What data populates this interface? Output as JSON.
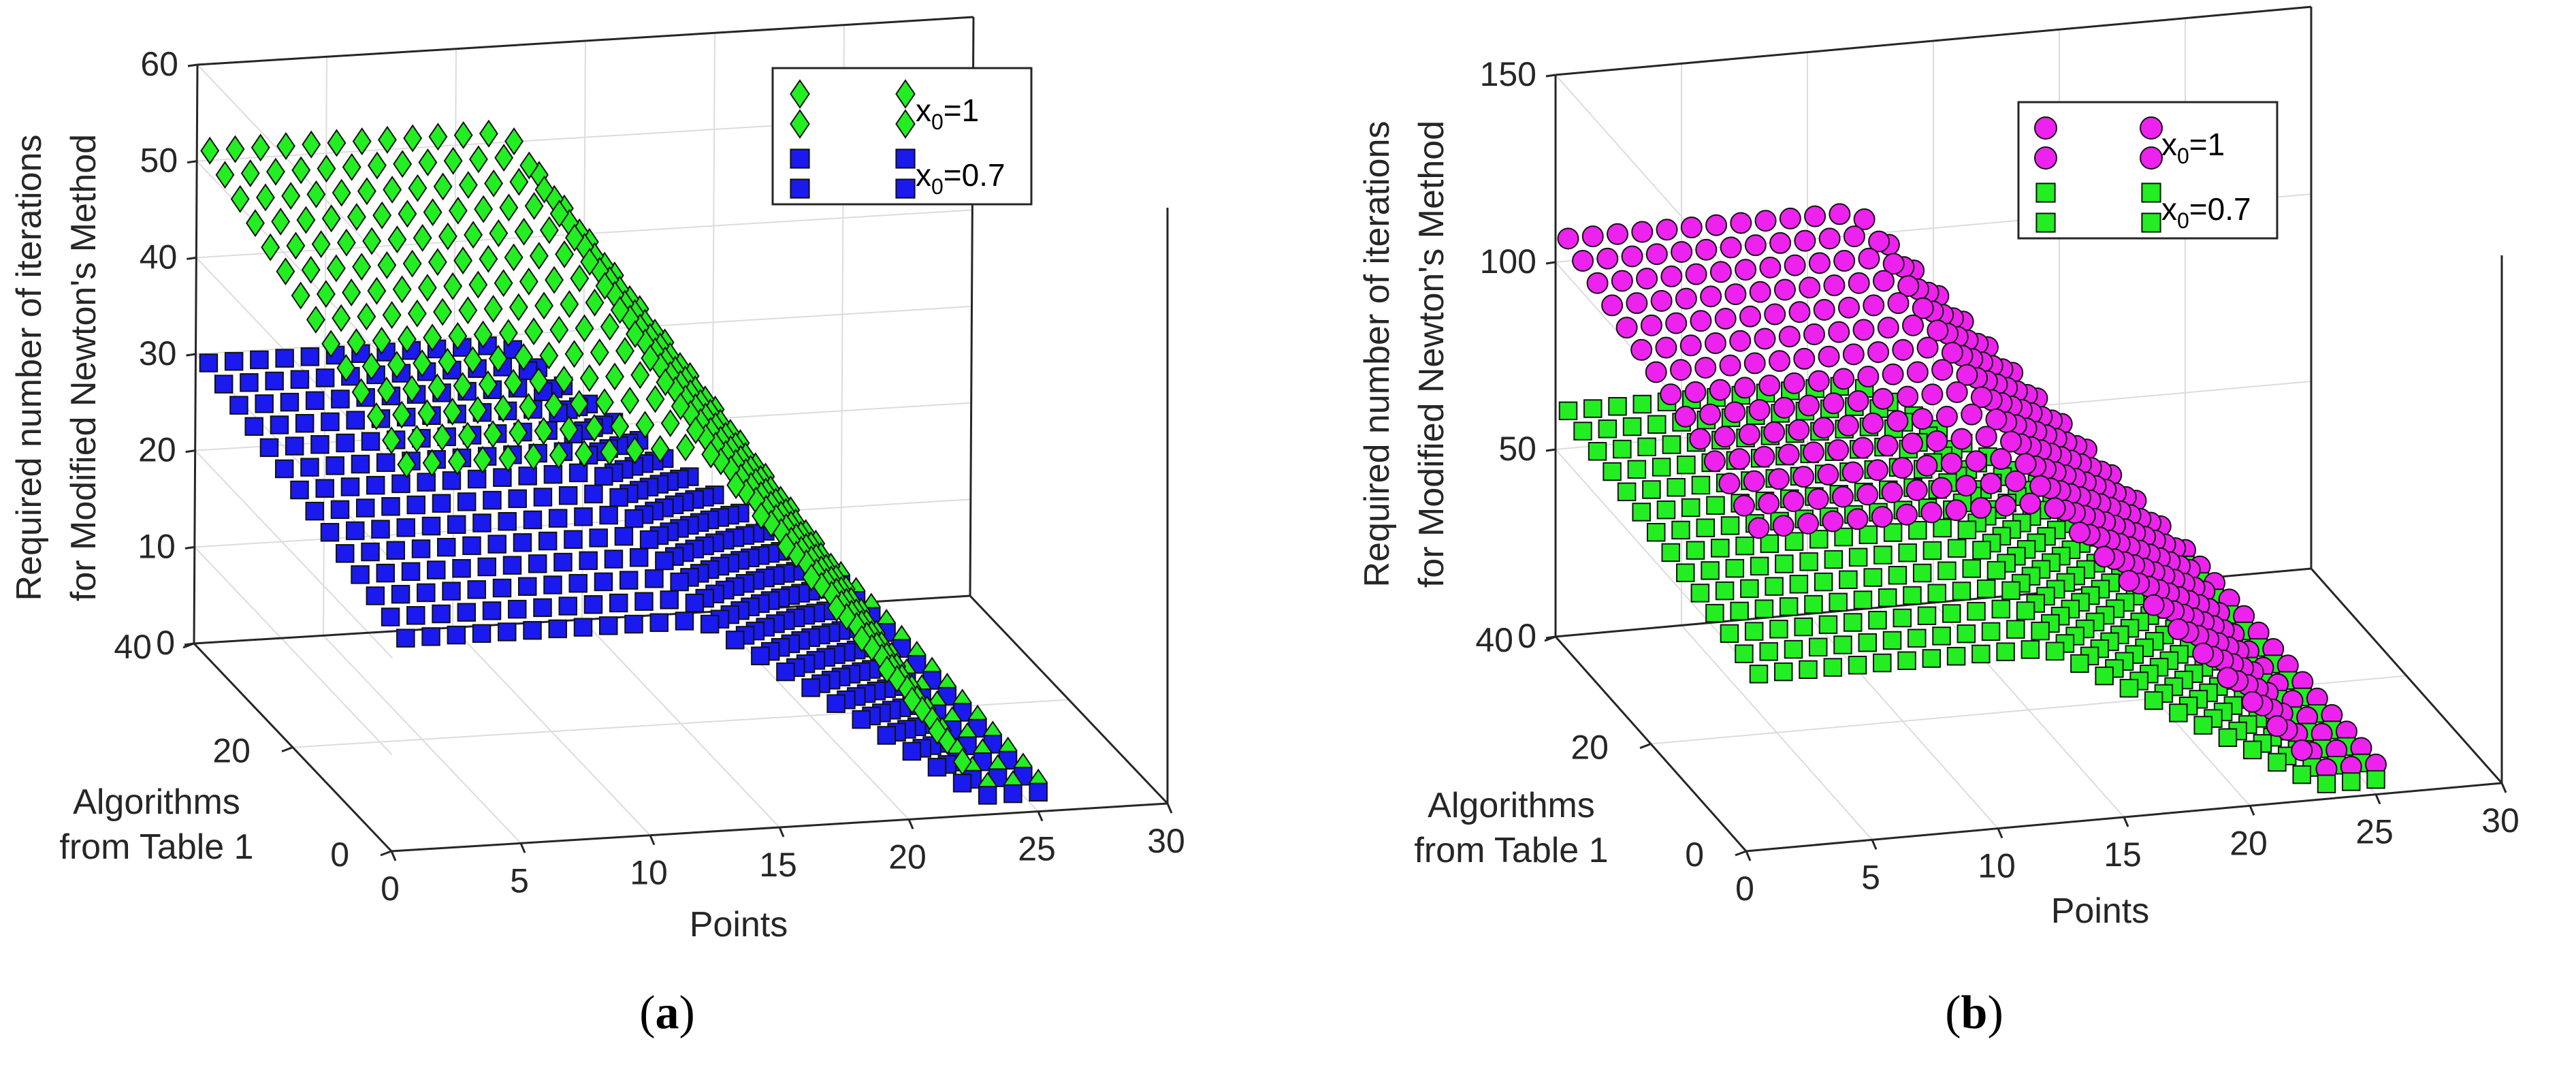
{
  "chart_data": [
    {
      "type": "scatter3d",
      "panel": "(a)",
      "panel_letter": "a",
      "zlabel_line1": "Required number of iterations",
      "zlabel_line2": "for Modified Newton's Method",
      "xlabel": "Points",
      "ylabel_line1": "Algorithms",
      "ylabel_line2": "from Table 1",
      "xlim": [
        0,
        30
      ],
      "ylim": [
        0,
        40
      ],
      "zlim": [
        0,
        60
      ],
      "xticks": [
        "0",
        "5",
        "10",
        "15",
        "20",
        "25",
        "30"
      ],
      "yticks": [
        "0",
        "20",
        "40"
      ],
      "zticks": [
        "0",
        "10",
        "20",
        "30",
        "40",
        "50",
        "60"
      ],
      "legend_location": "top-right",
      "series": [
        {
          "name": "x0=1",
          "label_main": "x",
          "label_sub": "0",
          "label_rest": "=1",
          "marker": "diamond",
          "color": "#22ee22",
          "surface": {
            "z_at_x0_y40": 51,
            "z_at_x0_y0": 40,
            "z_at_x12_y40": 51,
            "z_at_x12_y0": 40,
            "z_at_x25": 3
          }
        },
        {
          "name": "x0=0.7",
          "label_main": "x",
          "label_sub": "0",
          "label_rest": "=0.7",
          "marker": "square",
          "color": "#1a1aee",
          "surface": {
            "z_at_x0_y40": 29,
            "z_at_x0_y0": 22,
            "z_at_x12_y40": 29,
            "z_at_x12_y0": 22,
            "z_at_x25": 2
          }
        }
      ]
    },
    {
      "type": "scatter3d",
      "panel": "(b)",
      "panel_letter": "b",
      "zlabel_line1": "Required number of iterations",
      "zlabel_line2": "for Modified Newton's Method",
      "xlabel": "Points",
      "ylabel_line1": "Algorithms",
      "ylabel_line2": "from Table 1",
      "xlim": [
        0,
        30
      ],
      "ylim": [
        0,
        40
      ],
      "zlim": [
        0,
        150
      ],
      "xticks": [
        "0",
        "5",
        "10",
        "15",
        "20",
        "25",
        "30"
      ],
      "yticks": [
        "0",
        "20",
        "40"
      ],
      "zticks": [
        "0",
        "50",
        "100",
        "150"
      ],
      "legend_location": "top-right",
      "series": [
        {
          "name": "x0=1",
          "label_main": "x",
          "label_sub": "0",
          "label_rest": "=1",
          "marker": "circle",
          "color": "#ee22ee",
          "surface": {
            "z_at_x0_y40": 106,
            "z_at_x0_y0": 86,
            "z_at_x12_y40": 106,
            "z_at_x12_y0": 86,
            "z_at_x25": 8
          }
        },
        {
          "name": "x0=0.7",
          "label_main": "x",
          "label_sub": "0",
          "label_rest": "=0.7",
          "marker": "square",
          "color": "#22ee22",
          "surface": {
            "z_at_x0_y40": 60,
            "z_at_x0_y0": 47,
            "z_at_x12_y40": 60,
            "z_at_x12_y0": 47,
            "z_at_x25": 4
          }
        }
      ]
    }
  ]
}
